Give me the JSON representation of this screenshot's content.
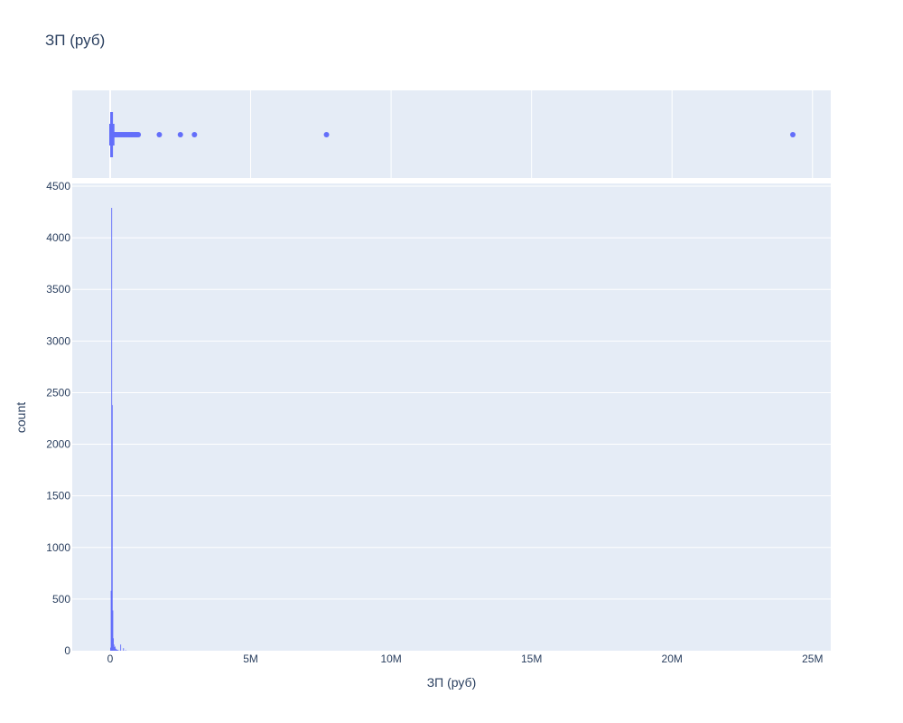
{
  "chart_data": {
    "type": "histogram",
    "title": "ЗП (руб)",
    "xlabel": "ЗП (руб)",
    "ylabel": "count",
    "xlim": [
      -1350000,
      25650000
    ],
    "ylim": [
      0,
      4500
    ],
    "x_ticks": [
      {
        "value": 0,
        "label": "0"
      },
      {
        "value": 5000000,
        "label": "5M"
      },
      {
        "value": 10000000,
        "label": "10M"
      },
      {
        "value": 15000000,
        "label": "15M"
      },
      {
        "value": 20000000,
        "label": "20M"
      },
      {
        "value": 25000000,
        "label": "25M"
      }
    ],
    "y_ticks": [
      0,
      500,
      1000,
      1500,
      2000,
      2500,
      3000,
      3500,
      4000,
      4500
    ],
    "grid": true,
    "bar_color": "#636efa",
    "plot_bg": "#e5ecf6",
    "histogram": {
      "bin_width": 20000,
      "bins": [
        {
          "x0": 0,
          "count": 30
        },
        {
          "x0": 20000,
          "count": 580
        },
        {
          "x0": 40000,
          "count": 4290
        },
        {
          "x0": 60000,
          "count": 2380
        },
        {
          "x0": 80000,
          "count": 390
        },
        {
          "x0": 100000,
          "count": 120
        },
        {
          "x0": 120000,
          "count": 60
        },
        {
          "x0": 140000,
          "count": 35
        },
        {
          "x0": 160000,
          "count": 40
        },
        {
          "x0": 180000,
          "count": 20
        },
        {
          "x0": 200000,
          "count": 15
        },
        {
          "x0": 220000,
          "count": 10
        },
        {
          "x0": 240000,
          "count": 8
        },
        {
          "x0": 260000,
          "count": 6
        },
        {
          "x0": 300000,
          "count": 4
        },
        {
          "x0": 360000,
          "count": 60
        },
        {
          "x0": 460000,
          "count": 25
        },
        {
          "x0": 540000,
          "count": 5
        }
      ]
    },
    "box": {
      "q1": 35000,
      "median": 50000,
      "q3": 65000,
      "lower_fence": 0,
      "upper_fence": 120000,
      "outliers": [
        130000,
        160000,
        200000,
        250000,
        300000,
        350000,
        400000,
        450000,
        500000,
        550000,
        600000,
        650000,
        700000,
        750000,
        800000,
        850000,
        900000,
        950000,
        1000000,
        1750000,
        2500000,
        3000000,
        7700000,
        24300000
      ]
    }
  }
}
